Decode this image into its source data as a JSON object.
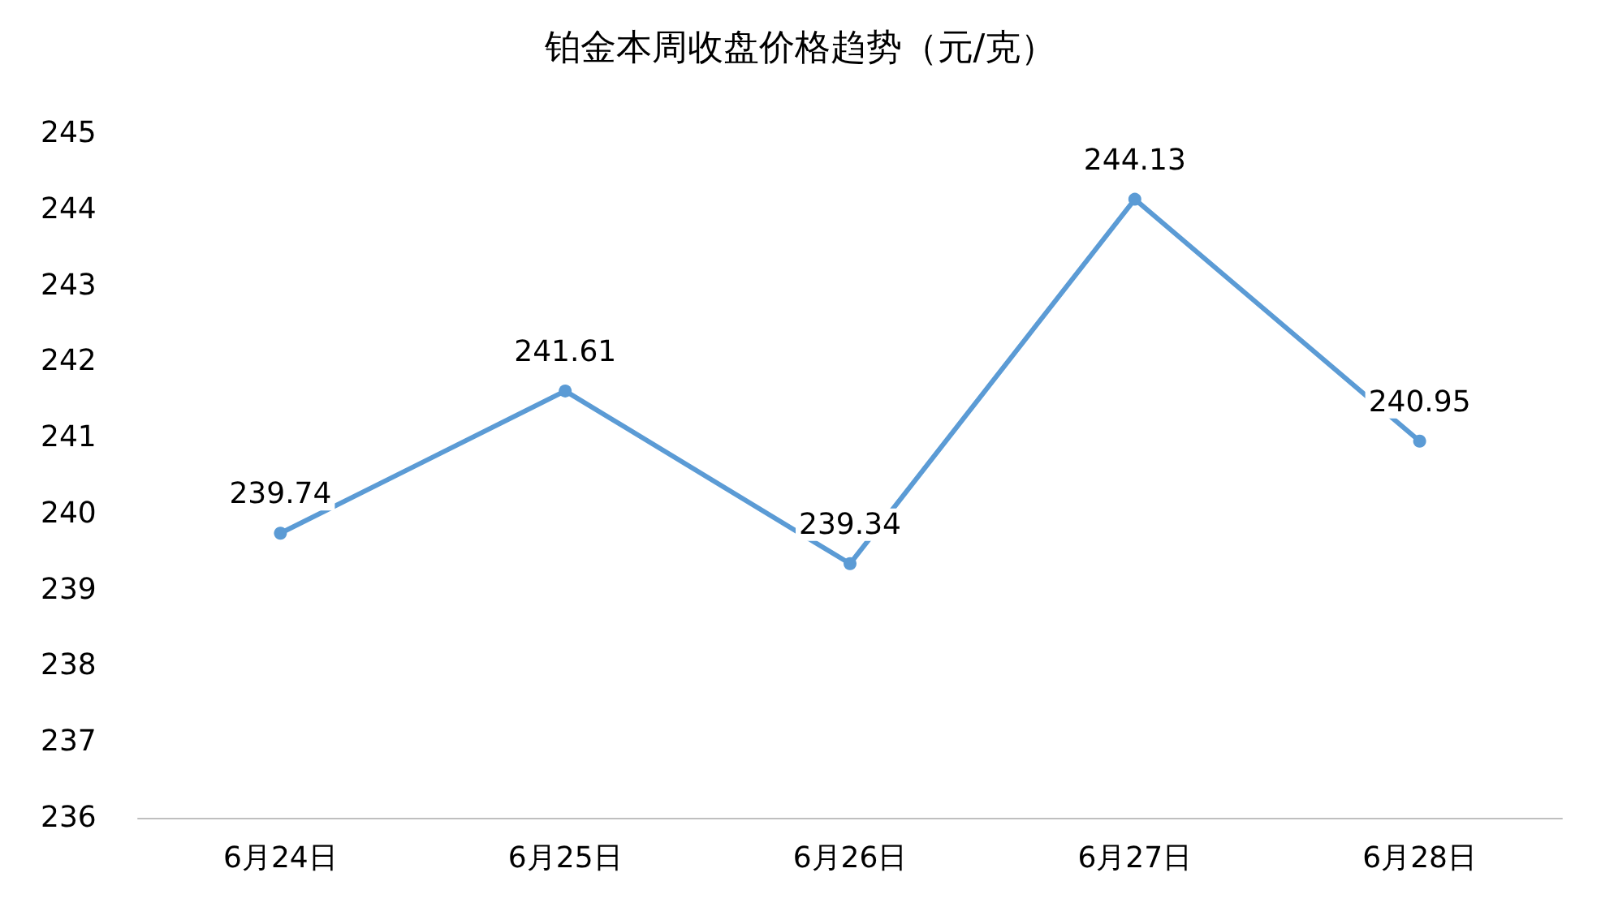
{
  "chart_data": {
    "type": "line",
    "title": "铂金本周收盘价格趋势（元/克）",
    "categories": [
      "6月24日",
      "6月25日",
      "6月26日",
      "6月27日",
      "6月28日"
    ],
    "series": [
      {
        "color": "#5b9bd5",
        "values": [
          239.74,
          241.61,
          239.34,
          244.13,
          240.95
        ]
      }
    ],
    "ylim": [
      236,
      245
    ],
    "yticks": [
      236,
      237,
      238,
      239,
      240,
      241,
      242,
      243,
      244,
      245
    ],
    "grid": false,
    "marker": "circle",
    "line_style": "solid",
    "data_labels": true
  }
}
